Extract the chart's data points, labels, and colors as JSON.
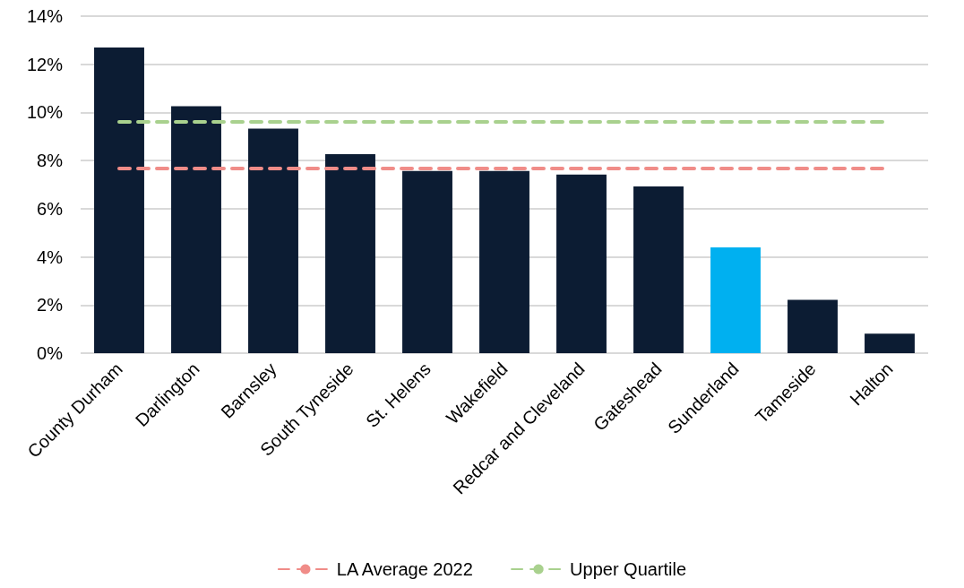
{
  "chart_data": {
    "type": "bar",
    "categories": [
      "County Durham",
      "Darlington",
      "Barnsley",
      "South Tyneside",
      "St. Helens",
      "Wakefield",
      "Redcar and Cleveland",
      "Gateshead",
      "Sunderland",
      "Tameside",
      "Halton"
    ],
    "values": [
      12.7,
      10.26,
      9.33,
      8.27,
      7.57,
      7.57,
      7.42,
      6.93,
      4.39,
      2.22,
      0.81
    ],
    "colors": [
      "#0c1c33",
      "#0c1c33",
      "#0c1c33",
      "#0c1c33",
      "#0c1c33",
      "#0c1c33",
      "#0c1c33",
      "#0c1c33",
      "#00b0f0",
      "#0c1c33",
      "#0c1c33"
    ],
    "ylim": [
      0,
      14
    ],
    "yticks": [
      {
        "value": 0,
        "label": "0%"
      },
      {
        "value": 2,
        "label": "2%"
      },
      {
        "value": 4,
        "label": "4%"
      },
      {
        "value": 6,
        "label": "6%"
      },
      {
        "value": 8,
        "label": "8%"
      },
      {
        "value": 10,
        "label": "10%"
      },
      {
        "value": 12,
        "label": "12%"
      },
      {
        "value": 14,
        "label": "14%"
      }
    ],
    "ref_lines": [
      {
        "axis": "y",
        "value": 7.69,
        "label": "LA Average 2022",
        "color": "#f08c88",
        "line_style": "dashed"
      },
      {
        "axis": "y",
        "value": 9.63,
        "label": "Upper Quartile",
        "color": "#a9d18e",
        "line_style": "dashed"
      }
    ],
    "grid": "y",
    "legend": "bottom"
  }
}
